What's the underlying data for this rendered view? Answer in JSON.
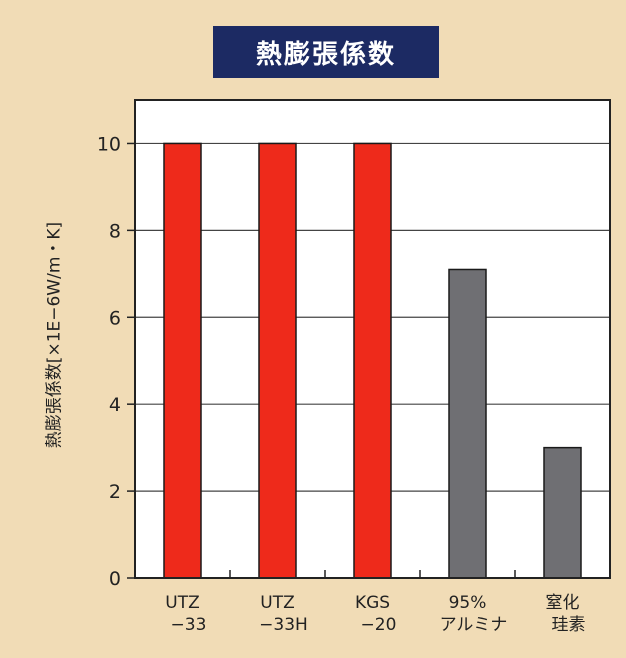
{
  "chart_data": {
    "type": "bar",
    "title": "熱膨張係数",
    "ylabel": "熱膨張係数[×1E−6W/m・K]",
    "xlabel": "",
    "ylim": [
      0,
      11
    ],
    "yticks": [
      0,
      2,
      4,
      6,
      8,
      10
    ],
    "grid": true,
    "categories": [
      [
        "UTZ",
        "−33"
      ],
      [
        "UTZ",
        "−33H"
      ],
      [
        "KGS",
        "−20"
      ],
      [
        "95%",
        "アルミナ"
      ],
      [
        "窒化",
        "珪素"
      ]
    ],
    "values": [
      10,
      10,
      10,
      7.1,
      3.0
    ],
    "colors": [
      "#ee2a1b",
      "#ee2a1b",
      "#ee2a1b",
      "#6f6f73",
      "#6f6f73"
    ],
    "background": "#f1dcb6",
    "plot_background": "#ffffff",
    "title_background": "#1c2a63"
  }
}
